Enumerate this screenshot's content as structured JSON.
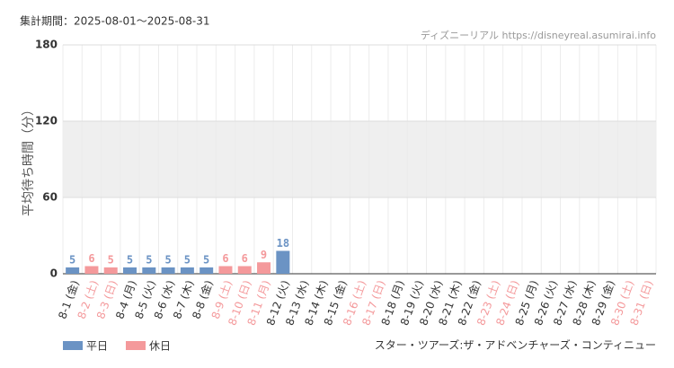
{
  "chart_data": {
    "type": "bar",
    "title": "集計期間：2025-08-01～2025-08-31",
    "source": "ディズニーリアル https://disneyreal.asumirai.info",
    "attraction": "スター・ツアーズ:ザ・アドベンチャーズ・コンティニュー",
    "y_label": "平均待ち時間（分）",
    "categories": [
      "8-1 (金)",
      "8-2 (土)",
      "8-3 (日)",
      "8-4 (月)",
      "8-5 (火)",
      "8-6 (水)",
      "8-7 (木)",
      "8-8 (金)",
      "8-9 (土)",
      "8-10 (日)",
      "8-11 (月)",
      "8-12 (火)",
      "8-13 (水)",
      "8-14 (木)",
      "8-15 (金)",
      "8-16 (土)",
      "8-17 (日)",
      "8-18 (月)",
      "8-19 (火)",
      "8-20 (水)",
      "8-21 (木)",
      "8-22 (金)",
      "8-23 (土)",
      "8-24 (日)",
      "8-25 (月)",
      "8-26 (火)",
      "8-27 (水)",
      "8-28 (木)",
      "8-29 (金)",
      "8-30 (土)",
      "8-31 (日)"
    ],
    "category_series": [
      0,
      1,
      1,
      0,
      0,
      0,
      0,
      0,
      1,
      1,
      1,
      0,
      0,
      0,
      0,
      1,
      1,
      0,
      0,
      0,
      0,
      0,
      1,
      1,
      0,
      0,
      0,
      0,
      0,
      1,
      1
    ],
    "series": [
      {
        "name": "平日",
        "color": "#6b93c4",
        "values": [
          5,
          null,
          null,
          5,
          5,
          5,
          5,
          5,
          null,
          null,
          null,
          18,
          null,
          null,
          null,
          null,
          null,
          null,
          null,
          null,
          null,
          null,
          null,
          null,
          null,
          null,
          null,
          null,
          null,
          null,
          null
        ]
      },
      {
        "name": "休日",
        "color": "#f4999b",
        "values": [
          null,
          6,
          5,
          null,
          null,
          null,
          null,
          null,
          6,
          6,
          9,
          null,
          null,
          null,
          null,
          null,
          null,
          null,
          null,
          null,
          null,
          null,
          null,
          null,
          null,
          null,
          null,
          null,
          null,
          null,
          null
        ]
      }
    ],
    "ylim": [
      0,
      180
    ],
    "yticks": [
      0,
      60,
      120,
      180
    ],
    "grid": true
  }
}
